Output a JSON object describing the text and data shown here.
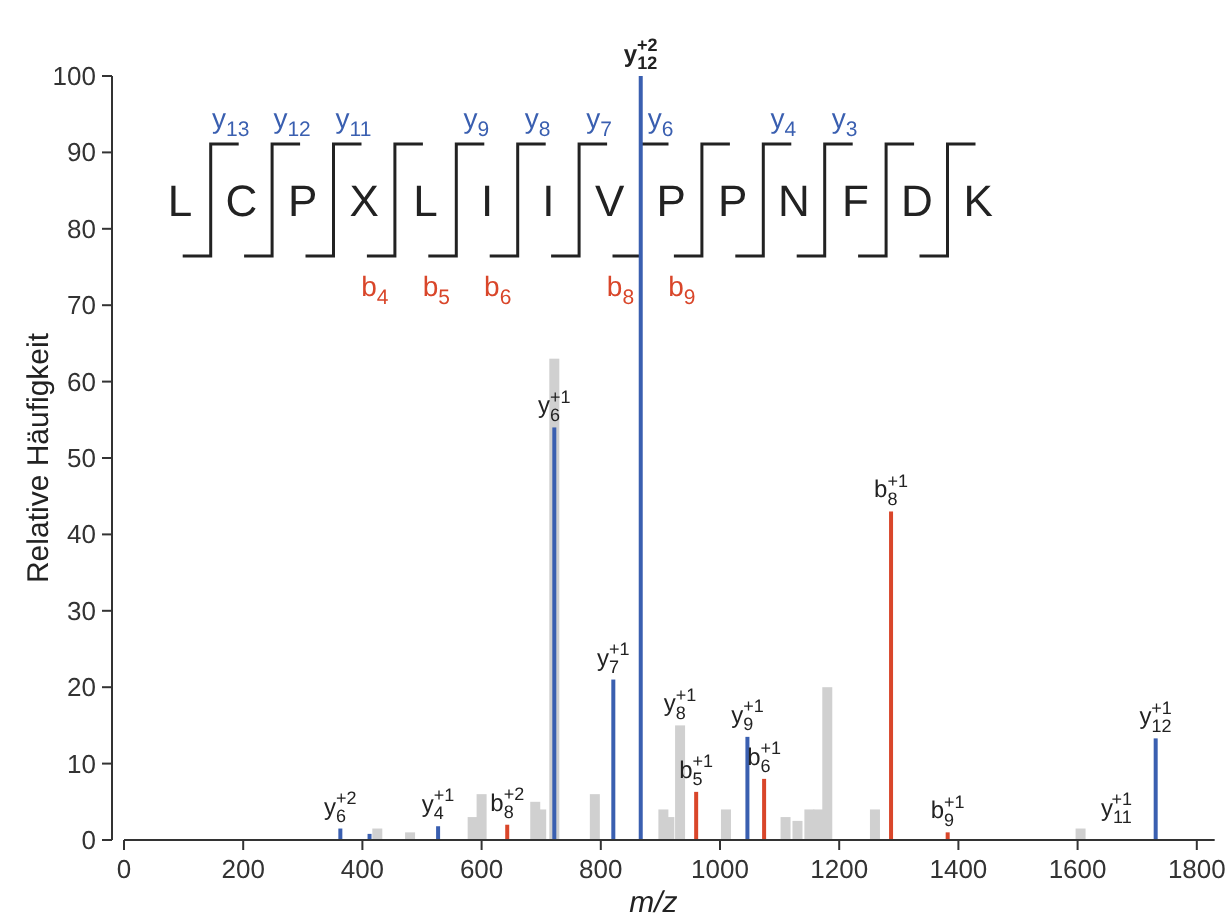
{
  "chart_data": {
    "type": "bar",
    "xlabel": "m/z",
    "ylabel": "Relative Häufigkeit",
    "xlim": [
      0,
      1830
    ],
    "ylim": [
      0,
      100
    ],
    "xticks": [
      0,
      200,
      400,
      600,
      800,
      1000,
      1200,
      1400,
      1600,
      1800
    ],
    "yticks": [
      0,
      10,
      20,
      30,
      40,
      50,
      60,
      70,
      80,
      90,
      100
    ],
    "grid": false,
    "series": [
      {
        "color": "#d0d0d0",
        "x": [
          425,
          480,
          585,
          600,
          690,
          700,
          722,
          790,
          905,
          915,
          933,
          1010,
          1110,
          1130,
          1150,
          1165,
          1180,
          1260,
          1605
        ],
        "values": [
          1.5,
          1,
          3,
          6,
          5,
          4,
          63,
          6,
          4,
          3,
          15,
          4,
          3,
          2.5,
          4,
          4,
          20,
          4,
          1.5
        ]
      },
      {
        "color": "#3a5fb0",
        "x": [
          363,
          412,
          527,
          722,
          821,
          867,
          1046,
          1731
        ],
        "values": [
          1.5,
          0.8,
          1.8,
          54,
          21,
          100,
          13.5,
          13.3
        ]
      },
      {
        "color": "#d9462a",
        "x": [
          643,
          960,
          1074,
          1287,
          1382
        ],
        "values": [
          2,
          6.3,
          8,
          43,
          1
        ]
      }
    ],
    "annotations": [
      "LCPXLIIVPPNFDK",
      "y$_{13}$",
      "y$_{12}$",
      "y$_{11}$",
      "y$_{9}$",
      "y$_{8}$",
      "y$_{7}$",
      "y$_{6}$",
      "y$_{4}$",
      "y$_{3}$",
      "b$_{4}$",
      "b$_{5}$",
      "b$_{6}$",
      "b$_{8}$",
      "b$_{9}$",
      {
        "text": "y$_{6}$$^{+2}$",
        "x": 363,
        "y": 1.5
      },
      {
        "text": "y$_{4}$$^{+1}$",
        "x": 527,
        "y": 1.8
      },
      {
        "text": "b$_{8}$$^{+2}$",
        "x": 643,
        "y": 2
      },
      {
        "text": "y$_{6}$$^{+1}$",
        "x": 722,
        "y": 54
      },
      {
        "text": "y$_{7}$$^{+1}$",
        "x": 821,
        "y": 21
      },
      {
        "text": "y$_{12}$$^{+2}$",
        "x": 867,
        "y": 100
      },
      {
        "text": "y$_{8}$$^{+1}$",
        "x": 933,
        "y": 15
      },
      {
        "text": "b$_{5}$$^{+1}$",
        "x": 960,
        "y": 6.3
      },
      {
        "text": "y$_{9}$$^{+1}$",
        "x": 1046,
        "y": 13.5
      },
      {
        "text": "b$_{6}$$^{+1}$",
        "x": 1074,
        "y": 8
      },
      {
        "text": "b$_{8}$$^{+1}$",
        "x": 1287,
        "y": 43
      },
      {
        "text": "b$_{9}$$^{+1}$",
        "x": 1382,
        "y": 1
      },
      "y$_{11}$$^{+1}$",
      {
        "text": "y$_{12}$$^{+1}$",
        "x": 1731,
        "y": 13.3
      }
    ]
  }
}
